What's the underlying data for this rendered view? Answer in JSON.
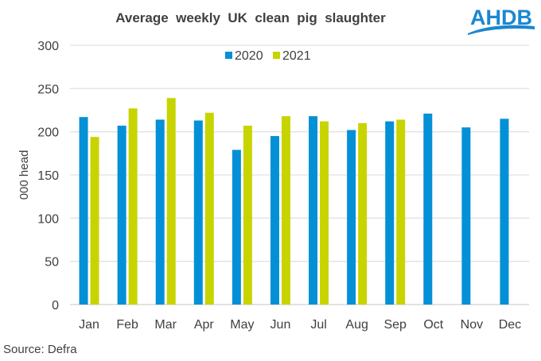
{
  "logo": {
    "text": "AHDB",
    "color": "#1b87d0"
  },
  "chart_data": {
    "type": "bar",
    "title": "Average  weekly  UK  clean  pig  slaughter",
    "ylabel": "000 head",
    "xlabel": "",
    "source": "Source: Defra",
    "ylim": [
      0,
      300
    ],
    "yticks": [
      0,
      50,
      100,
      150,
      200,
      250,
      300
    ],
    "grid": true,
    "legend_position": "top-center",
    "categories": [
      "Jan",
      "Feb",
      "Mar",
      "Apr",
      "May",
      "Jun",
      "Jul",
      "Aug",
      "Sep",
      "Oct",
      "Nov",
      "Dec"
    ],
    "series": [
      {
        "name": "2020",
        "color": "#0490d6",
        "values": [
          217,
          207,
          214,
          213,
          179,
          195,
          218,
          202,
          212,
          221,
          205,
          215
        ]
      },
      {
        "name": "2021",
        "color": "#c8d400",
        "values": [
          194,
          227,
          239,
          222,
          207,
          218,
          212,
          210,
          214,
          null,
          null,
          null
        ]
      }
    ]
  }
}
